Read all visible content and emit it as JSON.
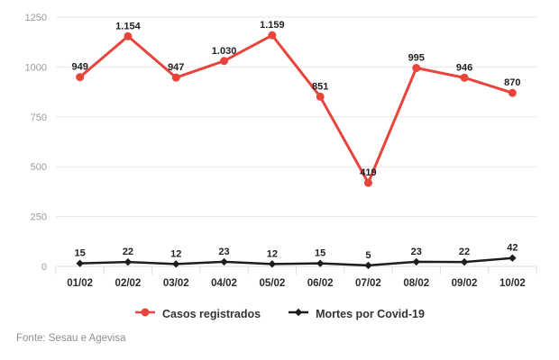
{
  "chart_data": {
    "type": "line",
    "categories": [
      "01/02",
      "02/02",
      "03/02",
      "04/02",
      "05/02",
      "06/02",
      "07/02",
      "08/02",
      "09/02",
      "10/02"
    ],
    "series": [
      {
        "name": "Casos registrados",
        "color": "#e8443c",
        "marker": "circle",
        "values": [
          949,
          1154,
          947,
          1030,
          1159,
          851,
          419,
          995,
          946,
          870
        ],
        "labels": [
          "949",
          "1.154",
          "947",
          "1.030",
          "1.159",
          "851",
          "419",
          "995",
          "946",
          "870"
        ]
      },
      {
        "name": "Mortes por Covid-19",
        "color": "#1d1d1b",
        "marker": "diamond",
        "values": [
          15,
          22,
          12,
          23,
          12,
          15,
          5,
          23,
          22,
          42
        ],
        "labels": [
          "15",
          "22",
          "12",
          "23",
          "12",
          "15",
          "5",
          "23",
          "22",
          "42"
        ]
      }
    ],
    "yticks": [
      0,
      250,
      500,
      750,
      1000,
      1250
    ],
    "ylim": [
      0,
      1250
    ],
    "grid": true,
    "legend_position": "bottom"
  },
  "footer": {
    "source": "Fonte: Sesau e Agevisa"
  },
  "colors": {
    "background": "#ffffff",
    "grid": "#e7e7e7",
    "axis": "#d9dee8",
    "tick_label": "#9b9b9b",
    "category_label": "#2b2b2b",
    "data_label": "#1f1f1f",
    "footer_text": "#8e8e8e"
  }
}
